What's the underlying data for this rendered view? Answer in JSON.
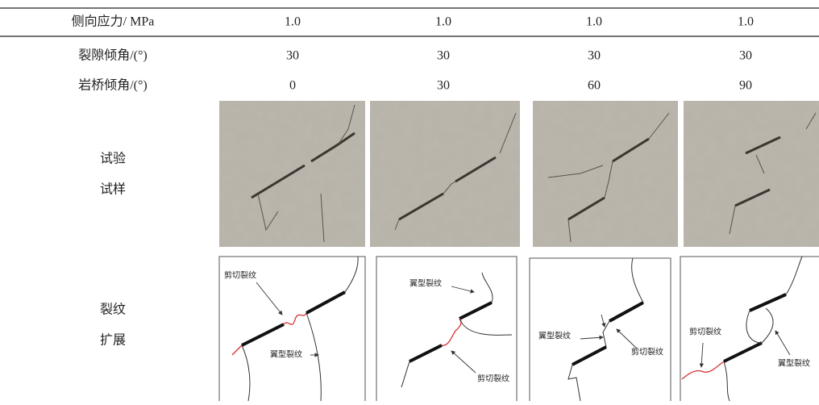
{
  "table": {
    "header": [
      "侧向应力/ MPa",
      "1.0",
      "1.0",
      "1.0",
      "1.0"
    ],
    "rows": [
      [
        "裂隙倾角/(°)",
        "30",
        "30",
        "30",
        "30"
      ],
      [
        "岩桥倾角/(°)",
        "0",
        "30",
        "60",
        "90"
      ]
    ],
    "photo_row": {
      "label": [
        "试验",
        "试样"
      ]
    },
    "diagram_row": {
      "label": [
        "裂纹",
        "扩展"
      ],
      "panels": [
        {
          "labels": [
            "剪切裂纹",
            "翼型裂纹"
          ]
        },
        {
          "labels": [
            "翼型裂纹",
            "剪切裂纹"
          ]
        },
        {
          "labels": [
            "翼型裂纹",
            "剪切裂纹"
          ]
        },
        {
          "labels": [
            "剪切裂纹",
            "翼型裂纹"
          ]
        }
      ]
    }
  }
}
